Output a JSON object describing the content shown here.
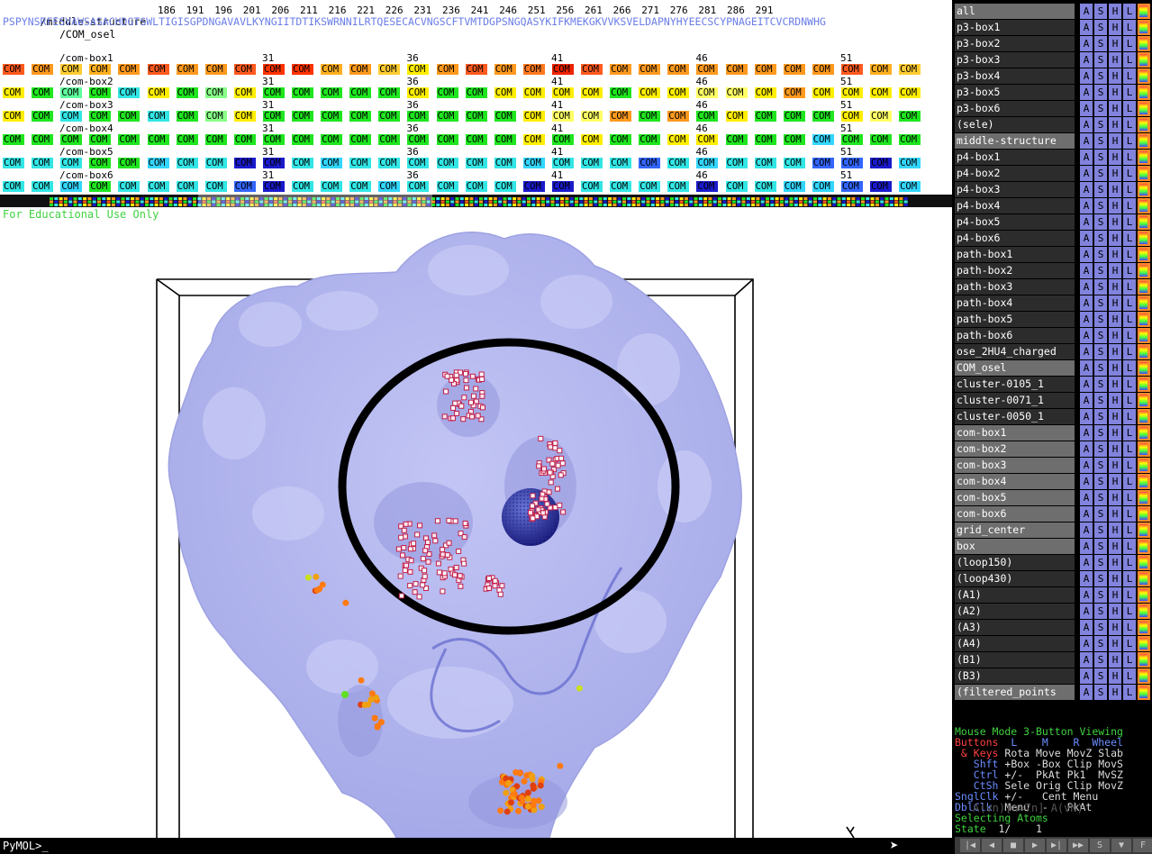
{
  "sequence": {
    "structure_name": "/middle-structure",
    "tick_labels": [
      "186",
      "191",
      "196",
      "201",
      "206",
      "211",
      "216",
      "221",
      "226",
      "231",
      "236",
      "241",
      "246",
      "251",
      "256",
      "261",
      "266",
      "271",
      "276",
      "281",
      "286",
      "291"
    ],
    "residues": "PSPYNSRFESVAWSASACHDGTSWLTIGISGPDNGAVAVLKYNGIITDTIKSWRNNILRTQESECACVNGSCFTVMTDGPSNGQASYKIFKMEKGKVVKSVELDAPNYHYEECSCYPNAGEITCVCRDNWHG",
    "com_osel": "/COM_osel",
    "com_label": "COM",
    "position_labels": [
      "31",
      "36",
      "41",
      "46",
      "51"
    ],
    "rows": [
      {
        "name": "/com-box1",
        "colors": [
          "#ff5a1f",
          "#ff9a1f",
          "#ffcc33",
          "#ffb020",
          "#ff9a1f",
          "#ff5a1f",
          "#ff9a1f",
          "#ff9a1f",
          "#ff5a1f",
          "#ff3300",
          "#ff3300",
          "#ffb020",
          "#ff9a1f",
          "#ffcc33",
          "#ffee00",
          "#ff9a1f",
          "#ff5a1f",
          "#ff9a1f",
          "#ff7a1f",
          "#ee2200",
          "#ff5a1f",
          "#ff9a1f",
          "#ff9a1f",
          "#ff9a1f",
          "#ff9a1f",
          "#ff9a1f",
          "#ff9a1f",
          "#ff9a1f",
          "#ff9a1f",
          "#ff5a1f",
          "#ffb020",
          "#ffcc33"
        ]
      },
      {
        "name": "/com-box2",
        "colors": [
          "#ffee00",
          "#1fe61f",
          "#5fff9f",
          "#1fe61f",
          "#33e6e6",
          "#ffee00",
          "#1fe61f",
          "#88ff88",
          "#ffee00",
          "#1fe61f",
          "#1fe61f",
          "#1fe61f",
          "#1fe61f",
          "#1fe61f",
          "#ffee00",
          "#1fe61f",
          "#1fe61f",
          "#ffee00",
          "#ffee00",
          "#ffee00",
          "#ffee00",
          "#1fe61f",
          "#ffee00",
          "#ffee00",
          "#ffff66",
          "#ffff66",
          "#ffee00",
          "#ff9a1f",
          "#ffee00",
          "#ffee00",
          "#ffee00",
          "#ffee00"
        ]
      },
      {
        "name": "/com-box3",
        "colors": [
          "#ffee00",
          "#1fe61f",
          "#33e6e6",
          "#1fe61f",
          "#1fe61f",
          "#33e6e6",
          "#1fe61f",
          "#88ff88",
          "#ffee00",
          "#1fe61f",
          "#1fe61f",
          "#1fe61f",
          "#1fe61f",
          "#1fe61f",
          "#1fe61f",
          "#1fe61f",
          "#1fe61f",
          "#1fe61f",
          "#ffee00",
          "#ffff66",
          "#ffff66",
          "#ff9a1f",
          "#1fe61f",
          "#ff9a1f",
          "#1fe61f",
          "#ffee00",
          "#1fe61f",
          "#1fe61f",
          "#1fe61f",
          "#ffee00",
          "#ffff66",
          "#1fe61f"
        ]
      },
      {
        "name": "/com-box4",
        "colors": [
          "#1fe61f",
          "#1fe61f",
          "#1fe61f",
          "#1fe61f",
          "#1fe61f",
          "#1fe61f",
          "#1fe61f",
          "#1fe61f",
          "#1fe61f",
          "#1fe61f",
          "#1fe61f",
          "#1fe61f",
          "#1fe61f",
          "#1fe61f",
          "#1fe61f",
          "#1fe61f",
          "#1fe61f",
          "#1fe61f",
          "#ffee00",
          "#1fe61f",
          "#ffee00",
          "#1fe61f",
          "#1fe61f",
          "#ffee00",
          "#ffee00",
          "#1fe61f",
          "#1fe61f",
          "#1fe61f",
          "#33d6ff",
          "#1fe61f",
          "#1fe61f",
          "#1fe61f"
        ]
      },
      {
        "name": "/com-box5",
        "colors": [
          "#33e6e6",
          "#33e6e6",
          "#33e6e6",
          "#1fe61f",
          "#1fe61f",
          "#33d6ff",
          "#33e6e6",
          "#33e6e6",
          "#1a1acc",
          "#1a1acc",
          "#33e6e6",
          "#33d6ff",
          "#33e6e6",
          "#33e6e6",
          "#33e6e6",
          "#33e6e6",
          "#33e6e6",
          "#33e6e6",
          "#33d6ff",
          "#33e6e6",
          "#33e6e6",
          "#33e6e6",
          "#3366ff",
          "#33e6e6",
          "#33d6ff",
          "#33e6e6",
          "#33e6e6",
          "#33e6e6",
          "#3366ff",
          "#3366ff",
          "#1a1acc",
          "#33d6ff"
        ]
      },
      {
        "name": "/com-box6",
        "colors": [
          "#33e6e6",
          "#33e6e6",
          "#33d6ff",
          "#1fe61f",
          "#33e6e6",
          "#33e6e6",
          "#33e6e6",
          "#33e6e6",
          "#3366ff",
          "#1a1acc",
          "#33e6e6",
          "#33e6e6",
          "#33e6e6",
          "#33d6ff",
          "#33e6e6",
          "#33e6e6",
          "#33e6e6",
          "#33e6e6",
          "#1a1acc",
          "#1a1acc",
          "#33e6e6",
          "#33e6e6",
          "#33e6e6",
          "#33e6e6",
          "#1a1acc",
          "#33e6e6",
          "#33e6e6",
          "#33d6ff",
          "#33d6ff",
          "#3366ff",
          "#1a1acc",
          "#33d6ff"
        ]
      }
    ]
  },
  "watermark": "For Educational Use Only",
  "command_prompt": "PyMOL>_",
  "objects": [
    {
      "name": "all",
      "shade": "grey"
    },
    {
      "name": "p3-box1",
      "shade": "dark"
    },
    {
      "name": "p3-box2",
      "shade": "dark"
    },
    {
      "name": "p3-box3",
      "shade": "dark"
    },
    {
      "name": "p3-box4",
      "shade": "dark"
    },
    {
      "name": "p3-box5",
      "shade": "dark"
    },
    {
      "name": "p3-box6",
      "shade": "dark"
    },
    {
      "name": "(sele)",
      "shade": "dark"
    },
    {
      "name": "middle-structure",
      "shade": "grey"
    },
    {
      "name": "p4-box1",
      "shade": "dark"
    },
    {
      "name": "p4-box2",
      "shade": "dark"
    },
    {
      "name": "p4-box3",
      "shade": "dark"
    },
    {
      "name": "p4-box4",
      "shade": "dark"
    },
    {
      "name": "p4-box5",
      "shade": "dark"
    },
    {
      "name": "p4-box6",
      "shade": "dark"
    },
    {
      "name": "path-box1",
      "shade": "dark"
    },
    {
      "name": "path-box2",
      "shade": "dark"
    },
    {
      "name": "path-box3",
      "shade": "dark"
    },
    {
      "name": "path-box4",
      "shade": "dark"
    },
    {
      "name": "path-box5",
      "shade": "dark"
    },
    {
      "name": "path-box6",
      "shade": "dark"
    },
    {
      "name": "ose_2HU4_charged",
      "shade": "dark"
    },
    {
      "name": "COM_osel",
      "shade": "grey"
    },
    {
      "name": "cluster-0105_1",
      "shade": "dark"
    },
    {
      "name": "cluster-0071_1",
      "shade": "dark"
    },
    {
      "name": "cluster-0050_1",
      "shade": "dark"
    },
    {
      "name": "com-box1",
      "shade": "grey"
    },
    {
      "name": "com-box2",
      "shade": "grey"
    },
    {
      "name": "com-box3",
      "shade": "grey"
    },
    {
      "name": "com-box4",
      "shade": "grey"
    },
    {
      "name": "com-box5",
      "shade": "grey"
    },
    {
      "name": "com-box6",
      "shade": "grey"
    },
    {
      "name": "grid_center",
      "shade": "grey"
    },
    {
      "name": "box",
      "shade": "grey"
    },
    {
      "name": "(loop150)",
      "shade": "dark"
    },
    {
      "name": "(loop430)",
      "shade": "dark"
    },
    {
      "name": "(A1)",
      "shade": "dark"
    },
    {
      "name": "(A2)",
      "shade": "dark"
    },
    {
      "name": "(A3)",
      "shade": "dark"
    },
    {
      "name": "(A4)",
      "shade": "dark"
    },
    {
      "name": "(B1)",
      "shade": "dark"
    },
    {
      "name": "(B3)",
      "shade": "dark"
    },
    {
      "name": "(filtered_points",
      "shade": "grey"
    }
  ],
  "object_buttons": [
    "A",
    "S",
    "H",
    "L",
    "C"
  ],
  "mouse_mode": {
    "title": "Mouse Mode 3-Button Viewing",
    "header_buttons": "Buttons",
    "header_cols": "  L    M    R  Wheel",
    "keys_label": " & Keys",
    "row1": " Rota Move MovZ Slab",
    "shft_label": "   Shft",
    "row2": " +Box -Box Clip MovS",
    "ctrl_label": "   Ctrl",
    "row3": " +/-  PkAt Pk1  MvSZ",
    "ctsh_label": "   CtSh",
    "row4": " Sele Orig Clip MovZ",
    "sngl_label": "SnglClk",
    "row5": " +/-   Cent Menu",
    "dbl_label": "DblClk",
    "row6": "  Menu  -   PkAt",
    "selecting": "Selecting Atoms",
    "state_label": "State",
    "state_value": "  1/    1"
  },
  "ghost_text": "A(vn)[n=7n]  A(vN)",
  "playback": [
    "|◀",
    "◀",
    "■",
    "▶",
    "▶|",
    "▶▶",
    "S",
    "▼",
    "F"
  ],
  "colors": {
    "surface": "#b3b6ee",
    "surface_shadow": "#8d91d8",
    "accent_green": "#3fd33f",
    "button_blue": "#8183dd",
    "button_orange": "#ff8a2a"
  }
}
